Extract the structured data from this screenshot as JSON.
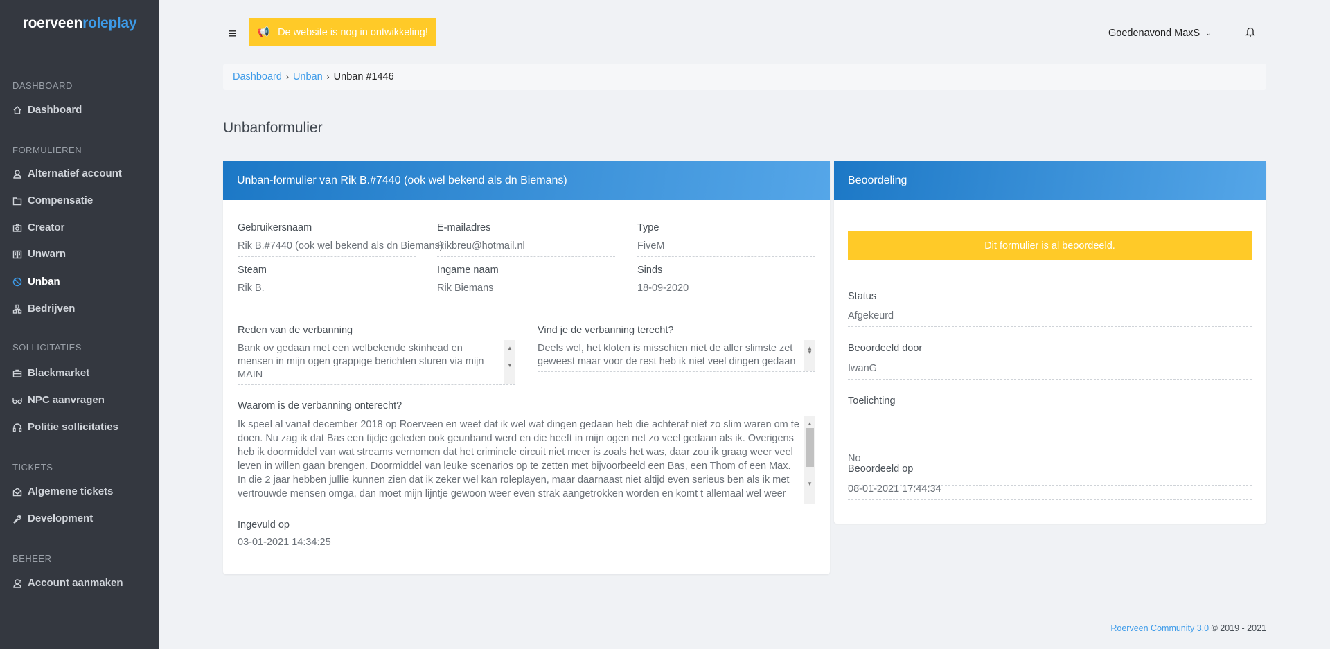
{
  "sidebar": {
    "logo": {
      "part1": "roerveen",
      "part2": "roleplay"
    },
    "sections": [
      {
        "title": "DASHBOARD",
        "items": [
          {
            "label": "Dashboard",
            "icon": "home-icon"
          }
        ]
      },
      {
        "title": "FORMULIEREN",
        "items": [
          {
            "label": "Alternatief account",
            "icon": "user-icon"
          },
          {
            "label": "Compensatie",
            "icon": "folder-icon"
          },
          {
            "label": "Creator",
            "icon": "camera-icon"
          },
          {
            "label": "Unwarn",
            "icon": "book-icon"
          },
          {
            "label": "Unban",
            "icon": "ban-icon",
            "active": true
          },
          {
            "label": "Bedrijven",
            "icon": "sitemap-icon"
          }
        ]
      },
      {
        "title": "SOLLICITATIES",
        "items": [
          {
            "label": "Blackmarket",
            "icon": "briefcase-icon"
          },
          {
            "label": "NPC aanvragen",
            "icon": "glasses-icon"
          },
          {
            "label": "Politie sollicitaties",
            "icon": "headset-icon"
          }
        ]
      },
      {
        "title": "TICKETS",
        "items": [
          {
            "label": "Algemene tickets",
            "icon": "envelope-open-icon"
          },
          {
            "label": "Development",
            "icon": "wrench-icon"
          }
        ]
      },
      {
        "title": "BEHEER",
        "items": [
          {
            "label": "Account aanmaken",
            "icon": "users-icon"
          }
        ]
      }
    ]
  },
  "topbar": {
    "banner": "De website is nog in ontwikkeling!",
    "greeting": "Goedenavond MaxS"
  },
  "breadcrumb": [
    "Dashboard",
    "Unban",
    "Unban #1446"
  ],
  "page_title": "Unbanformulier",
  "form_card": {
    "title": "Unban-formulier van Rik B.#7440 (ook wel bekend als dn Biemans)",
    "fields": [
      {
        "label": "Gebruikersnaam",
        "value": "Rik B.#7440 (ook wel bekend als dn Biemans)"
      },
      {
        "label": "E-mailadres",
        "value": "Rikbreu@hotmail.nl"
      },
      {
        "label": "Type",
        "value": "FiveM"
      },
      {
        "label": "Steam",
        "value": "Rik B."
      },
      {
        "label": "Ingame naam",
        "value": "Rik Biemans"
      },
      {
        "label": "Sinds",
        "value": "18-09-2020"
      }
    ],
    "reason": {
      "label": "Reden van de verbanning",
      "value": "Bank ov gedaan met een welbekende skinhead en mensen in mijn ogen grappige berichten sturen via mijn MAIN"
    },
    "justified": {
      "label": "Vind je de verbanning terecht?",
      "value": "Deels wel, het kloten is misschien niet de aller slimste zet geweest maar voor de rest heb ik niet veel dingen gedaan"
    },
    "unjust": {
      "label": "Waarom is de verbanning onterecht?",
      "value": "Ik speel al vanaf december 2018 op Roerveen en weet dat ik wel wat dingen gedaan heb die achteraf niet zo slim waren om te doen. Nu zag ik dat Bas een tijdje geleden ook geunband werd en die heeft in mijn ogen net zo veel gedaan als ik. Overigens heb ik doormiddel van wat streams vernomen dat het criminele circuit niet meer is zoals het was, daar zou ik graag weer veel leven in willen gaan brengen. Doormiddel van leuke scenarios op te zetten met bijvoorbeeld een Bas, een Thom of een Max. In die 2 jaar hebben jullie kunnen zien dat ik zeker wel kan roleplayen, maar daarnaast niet altijd even serieus ben als ik met vertrouwde mensen omga, dan moet mijn lijntje gewoon weer even strak aangetrokken worden en komt t allemaal wel weer"
    },
    "submitted": {
      "label": "Ingevuld op",
      "value": "03-01-2021 14:34:25"
    }
  },
  "review_card": {
    "title": "Beoordeling",
    "alert": "Dit formulier is al beoordeeld.",
    "status": {
      "label": "Status",
      "value": "Afgekeurd"
    },
    "reviewer": {
      "label": "Beoordeeld door",
      "value": "IwanG"
    },
    "comment": {
      "label": "Toelichting",
      "value": "No"
    },
    "reviewed_at": {
      "label": "Beoordeeld op",
      "value": "08-01-2021 17:44:34"
    }
  },
  "footer": {
    "brand": "Roerveen Community 3.0",
    "copy": " © 2019 - 2021"
  },
  "colors": {
    "sidebar": "#343840",
    "accent": "#3d9be9",
    "warning": "#ffca28",
    "background": "#f0f2f5"
  }
}
